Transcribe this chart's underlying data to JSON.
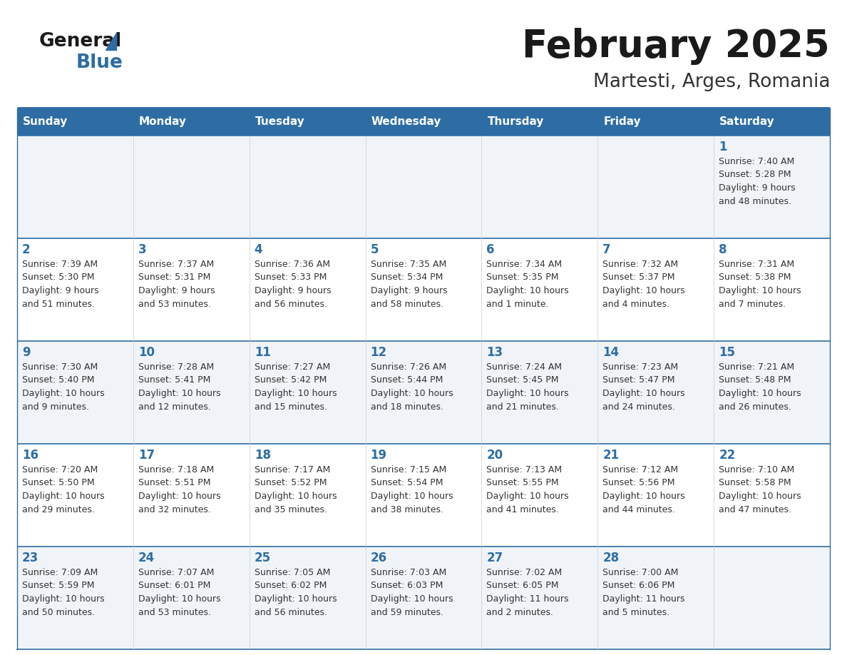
{
  "title": "February 2025",
  "subtitle": "Martesti, Arges, Romania",
  "header_bg": "#2E6DA4",
  "header_text_color": "#FFFFFF",
  "cell_bg_light": "#F0F4F8",
  "cell_bg_white": "#FFFFFF",
  "title_color": "#1a1a1a",
  "subtitle_color": "#333333",
  "day_num_color": "#2E6DA4",
  "info_color": "#333333",
  "line_color": "#2E6DA4",
  "border_color": "#2E6DA4",
  "day_headers": [
    "Sunday",
    "Monday",
    "Tuesday",
    "Wednesday",
    "Thursday",
    "Friday",
    "Saturday"
  ],
  "weeks": [
    [
      {
        "day": null,
        "info": null
      },
      {
        "day": null,
        "info": null
      },
      {
        "day": null,
        "info": null
      },
      {
        "day": null,
        "info": null
      },
      {
        "day": null,
        "info": null
      },
      {
        "day": null,
        "info": null
      },
      {
        "day": 1,
        "info": "Sunrise: 7:40 AM\nSunset: 5:28 PM\nDaylight: 9 hours\nand 48 minutes."
      }
    ],
    [
      {
        "day": 2,
        "info": "Sunrise: 7:39 AM\nSunset: 5:30 PM\nDaylight: 9 hours\nand 51 minutes."
      },
      {
        "day": 3,
        "info": "Sunrise: 7:37 AM\nSunset: 5:31 PM\nDaylight: 9 hours\nand 53 minutes."
      },
      {
        "day": 4,
        "info": "Sunrise: 7:36 AM\nSunset: 5:33 PM\nDaylight: 9 hours\nand 56 minutes."
      },
      {
        "day": 5,
        "info": "Sunrise: 7:35 AM\nSunset: 5:34 PM\nDaylight: 9 hours\nand 58 minutes."
      },
      {
        "day": 6,
        "info": "Sunrise: 7:34 AM\nSunset: 5:35 PM\nDaylight: 10 hours\nand 1 minute."
      },
      {
        "day": 7,
        "info": "Sunrise: 7:32 AM\nSunset: 5:37 PM\nDaylight: 10 hours\nand 4 minutes."
      },
      {
        "day": 8,
        "info": "Sunrise: 7:31 AM\nSunset: 5:38 PM\nDaylight: 10 hours\nand 7 minutes."
      }
    ],
    [
      {
        "day": 9,
        "info": "Sunrise: 7:30 AM\nSunset: 5:40 PM\nDaylight: 10 hours\nand 9 minutes."
      },
      {
        "day": 10,
        "info": "Sunrise: 7:28 AM\nSunset: 5:41 PM\nDaylight: 10 hours\nand 12 minutes."
      },
      {
        "day": 11,
        "info": "Sunrise: 7:27 AM\nSunset: 5:42 PM\nDaylight: 10 hours\nand 15 minutes."
      },
      {
        "day": 12,
        "info": "Sunrise: 7:26 AM\nSunset: 5:44 PM\nDaylight: 10 hours\nand 18 minutes."
      },
      {
        "day": 13,
        "info": "Sunrise: 7:24 AM\nSunset: 5:45 PM\nDaylight: 10 hours\nand 21 minutes."
      },
      {
        "day": 14,
        "info": "Sunrise: 7:23 AM\nSunset: 5:47 PM\nDaylight: 10 hours\nand 24 minutes."
      },
      {
        "day": 15,
        "info": "Sunrise: 7:21 AM\nSunset: 5:48 PM\nDaylight: 10 hours\nand 26 minutes."
      }
    ],
    [
      {
        "day": 16,
        "info": "Sunrise: 7:20 AM\nSunset: 5:50 PM\nDaylight: 10 hours\nand 29 minutes."
      },
      {
        "day": 17,
        "info": "Sunrise: 7:18 AM\nSunset: 5:51 PM\nDaylight: 10 hours\nand 32 minutes."
      },
      {
        "day": 18,
        "info": "Sunrise: 7:17 AM\nSunset: 5:52 PM\nDaylight: 10 hours\nand 35 minutes."
      },
      {
        "day": 19,
        "info": "Sunrise: 7:15 AM\nSunset: 5:54 PM\nDaylight: 10 hours\nand 38 minutes."
      },
      {
        "day": 20,
        "info": "Sunrise: 7:13 AM\nSunset: 5:55 PM\nDaylight: 10 hours\nand 41 minutes."
      },
      {
        "day": 21,
        "info": "Sunrise: 7:12 AM\nSunset: 5:56 PM\nDaylight: 10 hours\nand 44 minutes."
      },
      {
        "day": 22,
        "info": "Sunrise: 7:10 AM\nSunset: 5:58 PM\nDaylight: 10 hours\nand 47 minutes."
      }
    ],
    [
      {
        "day": 23,
        "info": "Sunrise: 7:09 AM\nSunset: 5:59 PM\nDaylight: 10 hours\nand 50 minutes."
      },
      {
        "day": 24,
        "info": "Sunrise: 7:07 AM\nSunset: 6:01 PM\nDaylight: 10 hours\nand 53 minutes."
      },
      {
        "day": 25,
        "info": "Sunrise: 7:05 AM\nSunset: 6:02 PM\nDaylight: 10 hours\nand 56 minutes."
      },
      {
        "day": 26,
        "info": "Sunrise: 7:03 AM\nSunset: 6:03 PM\nDaylight: 10 hours\nand 59 minutes."
      },
      {
        "day": 27,
        "info": "Sunrise: 7:02 AM\nSunset: 6:05 PM\nDaylight: 11 hours\nand 2 minutes."
      },
      {
        "day": 28,
        "info": "Sunrise: 7:00 AM\nSunset: 6:06 PM\nDaylight: 11 hours\nand 5 minutes."
      },
      {
        "day": null,
        "info": null
      }
    ]
  ]
}
